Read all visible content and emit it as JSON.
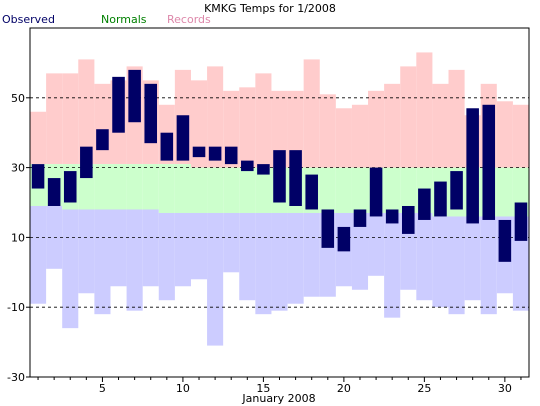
{
  "chart_data": {
    "type": "bar",
    "title": "KMKG Temps for 1/2008",
    "xlabel": "January 2008",
    "ylabel": "",
    "ylim": [
      -30,
      70
    ],
    "xlim": [
      0.5,
      31.5
    ],
    "y_ticks": [
      -30,
      -10,
      10,
      30,
      50
    ],
    "y_tick_labels": [
      "-30",
      "-10",
      "10",
      "30",
      "50"
    ],
    "x_ticks": [
      5,
      10,
      15,
      20,
      25,
      30
    ],
    "x_tick_labels": [
      "5",
      "10",
      "15",
      "20",
      "25",
      "30"
    ],
    "grid": "dashed horizontal at -10, 10, 30, 50",
    "legend": {
      "placement": "top-left",
      "entries": [
        {
          "label": "Observed",
          "color": "#000066"
        },
        {
          "label": "Normals",
          "color": "#008000"
        },
        {
          "label": "Records",
          "color": "#dd88aa"
        }
      ]
    },
    "colors": {
      "record_high": "#ffcccc",
      "normal": "#ccffcc",
      "record_low": "#ccccff",
      "observed": "#000066",
      "grid": "#000000"
    },
    "days": [
      1,
      2,
      3,
      4,
      5,
      6,
      7,
      8,
      9,
      10,
      11,
      12,
      13,
      14,
      15,
      16,
      17,
      18,
      19,
      20,
      21,
      22,
      23,
      24,
      25,
      26,
      27,
      28,
      29,
      30,
      31
    ],
    "record_high": [
      46,
      57,
      57,
      61,
      54,
      55,
      59,
      55,
      48,
      58,
      55,
      59,
      52,
      53,
      57,
      52,
      52,
      61,
      51,
      47,
      48,
      52,
      54,
      59,
      63,
      54,
      58,
      45,
      54,
      49,
      48
    ],
    "normal_high": [
      31,
      31,
      31,
      31,
      31,
      31,
      31,
      31,
      31,
      31,
      30,
      30,
      30,
      30,
      30,
      30,
      30,
      30,
      30,
      30,
      30,
      30,
      30,
      30,
      30,
      30,
      30,
      30,
      30,
      30,
      30
    ],
    "normal_low": [
      19,
      19,
      18,
      18,
      18,
      18,
      18,
      18,
      17,
      17,
      17,
      17,
      17,
      17,
      17,
      17,
      17,
      17,
      17,
      17,
      17,
      17,
      17,
      17,
      17,
      16,
      16,
      16,
      16,
      16,
      16
    ],
    "record_low": [
      -9,
      1,
      -16,
      -6,
      -12,
      -4,
      -11,
      -4,
      -8,
      -4,
      -2,
      -21,
      0,
      -8,
      -12,
      -11,
      -9,
      -7,
      -7,
      -4,
      -5,
      -1,
      -13,
      -5,
      -8,
      -10,
      -12,
      -8,
      -12,
      -6,
      -11
    ],
    "observed_high": [
      31,
      27,
      29,
      36,
      41,
      56,
      58,
      54,
      40,
      45,
      36,
      36,
      36,
      32,
      31,
      35,
      35,
      28,
      18,
      13,
      18,
      30,
      18,
      19,
      24,
      26,
      29,
      47,
      48,
      15,
      20
    ],
    "observed_low": [
      24,
      19,
      20,
      27,
      35,
      40,
      43,
      37,
      32,
      32,
      33,
      32,
      31,
      29,
      28,
      20,
      19,
      18,
      7,
      6,
      13,
      16,
      14,
      11,
      15,
      16,
      18,
      14,
      15,
      3,
      9
    ]
  }
}
